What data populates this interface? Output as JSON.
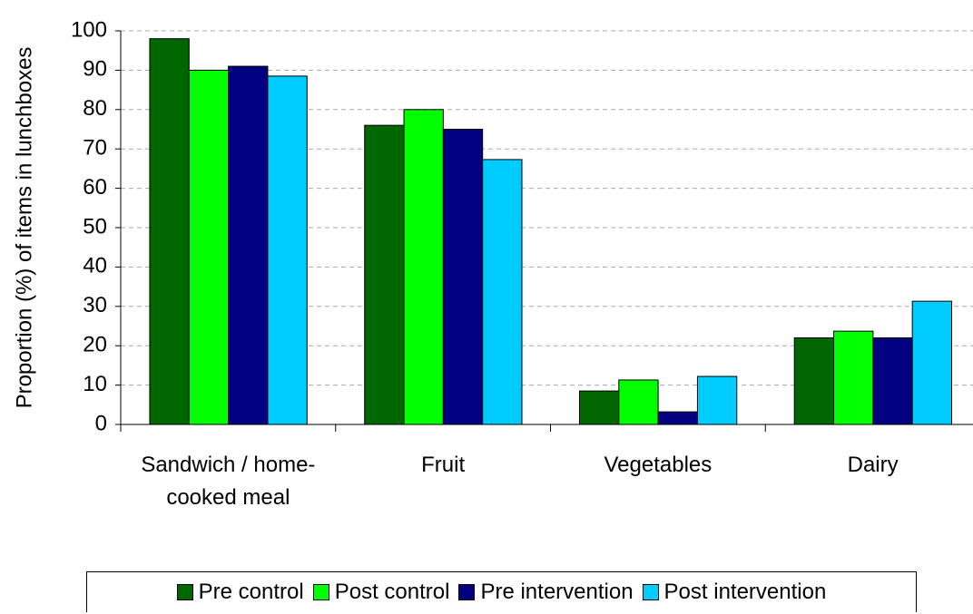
{
  "chart_data": {
    "type": "bar",
    "y_label": "Proportion (%) of items in lunchboxes",
    "categories": [
      "Sandwich / home-cooked meal",
      "Fruit",
      "Vegetables",
      "Dairy"
    ],
    "series": [
      {
        "name": "Pre control",
        "color": "#006600",
        "values": [
          98,
          76,
          8.5,
          22
        ]
      },
      {
        "name": "Post control",
        "color": "#00ff00",
        "values": [
          90,
          80,
          11.3,
          23.7
        ]
      },
      {
        "name": "Pre intervention",
        "color": "#000080",
        "values": [
          91,
          75,
          3.2,
          22
        ]
      },
      {
        "name": "Post intervention",
        "color": "#00ccff",
        "values": [
          88.5,
          67.3,
          12.2,
          31.3
        ]
      }
    ],
    "ylim": [
      0,
      100
    ],
    "yticks": [
      0,
      10,
      20,
      30,
      40,
      50,
      60,
      70,
      80,
      90,
      100
    ],
    "grid": true
  }
}
